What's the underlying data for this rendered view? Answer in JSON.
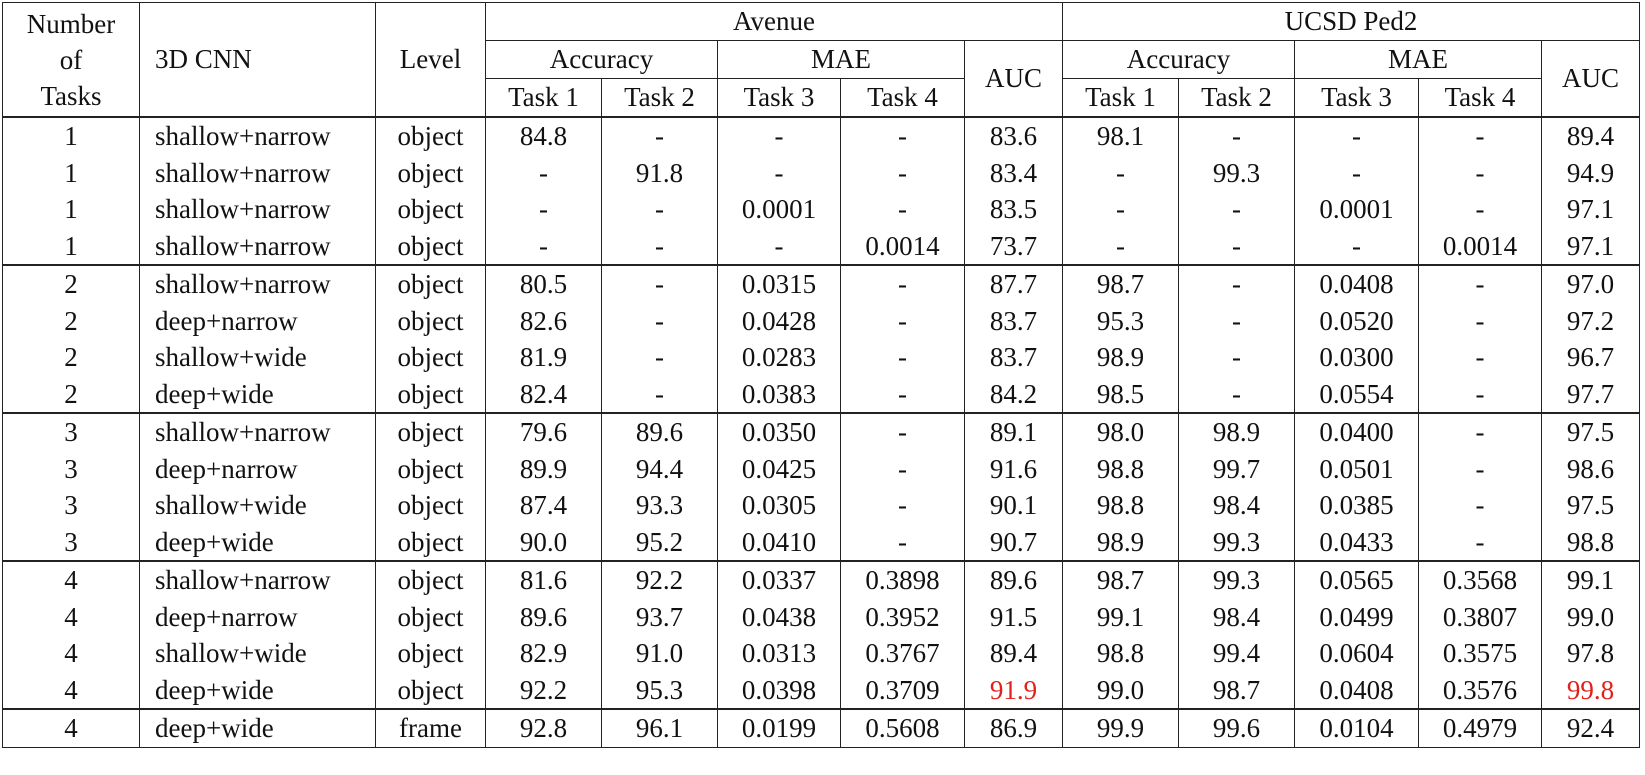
{
  "table": {
    "header": {
      "tasks": [
        "Number",
        "of",
        "Tasks"
      ],
      "cnn": "3D CNN",
      "level": "Level",
      "datasets": [
        {
          "name": "Avenue",
          "accuracy": "Accuracy",
          "mae": "MAE",
          "auc": "AUC",
          "tasks": [
            "Task 1",
            "Task 2",
            "Task 3",
            "Task 4"
          ]
        },
        {
          "name": "UCSD Ped2",
          "accuracy": "Accuracy",
          "mae": "MAE",
          "auc": "AUC",
          "tasks": [
            "Task 1",
            "Task 2",
            "Task 3",
            "Task 4"
          ]
        }
      ]
    },
    "row_groups": [
      [
        [
          "1",
          "shallow+narrow",
          "object",
          "84.8",
          "-",
          "-",
          "-",
          "83.6",
          "98.1",
          "-",
          "-",
          "-",
          "89.4"
        ],
        [
          "1",
          "shallow+narrow",
          "object",
          "-",
          "91.8",
          "-",
          "-",
          "83.4",
          "-",
          "99.3",
          "-",
          "-",
          "94.9"
        ],
        [
          "1",
          "shallow+narrow",
          "object",
          "-",
          "-",
          "0.0001",
          "-",
          "83.5",
          "-",
          "-",
          "0.0001",
          "-",
          "97.1"
        ],
        [
          "1",
          "shallow+narrow",
          "object",
          "-",
          "-",
          "-",
          "0.0014",
          "73.7",
          "-",
          "-",
          "-",
          "0.0014",
          "97.1"
        ]
      ],
      [
        [
          "2",
          "shallow+narrow",
          "object",
          "80.5",
          "-",
          "0.0315",
          "-",
          "87.7",
          "98.7",
          "-",
          "0.0408",
          "-",
          "97.0"
        ],
        [
          "2",
          "deep+narrow",
          "object",
          "82.6",
          "-",
          "0.0428",
          "-",
          "83.7",
          "95.3",
          "-",
          "0.0520",
          "-",
          "97.2"
        ],
        [
          "2",
          "shallow+wide",
          "object",
          "81.9",
          "-",
          "0.0283",
          "-",
          "83.7",
          "98.9",
          "-",
          "0.0300",
          "-",
          "96.7"
        ],
        [
          "2",
          "deep+wide",
          "object",
          "82.4",
          "-",
          "0.0383",
          "-",
          "84.2",
          "98.5",
          "-",
          "0.0554",
          "-",
          "97.7"
        ]
      ],
      [
        [
          "3",
          "shallow+narrow",
          "object",
          "79.6",
          "89.6",
          "0.0350",
          "-",
          "89.1",
          "98.0",
          "98.9",
          "0.0400",
          "-",
          "97.5"
        ],
        [
          "3",
          "deep+narrow",
          "object",
          "89.9",
          "94.4",
          "0.0425",
          "-",
          "91.6",
          "98.8",
          "99.7",
          "0.0501",
          "-",
          "98.6"
        ],
        [
          "3",
          "shallow+wide",
          "object",
          "87.4",
          "93.3",
          "0.0305",
          "-",
          "90.1",
          "98.8",
          "98.4",
          "0.0385",
          "-",
          "97.5"
        ],
        [
          "3",
          "deep+wide",
          "object",
          "90.0",
          "95.2",
          "0.0410",
          "-",
          "90.7",
          "98.9",
          "99.3",
          "0.0433",
          "-",
          "98.8"
        ]
      ],
      [
        [
          "4",
          "shallow+narrow",
          "object",
          "81.6",
          "92.2",
          "0.0337",
          "0.3898",
          "89.6",
          "98.7",
          "99.3",
          "0.0565",
          "0.3568",
          "99.1"
        ],
        [
          "4",
          "deep+narrow",
          "object",
          "89.6",
          "93.7",
          "0.0438",
          "0.3952",
          "91.5",
          "99.1",
          "98.4",
          "0.0499",
          "0.3807",
          "99.0"
        ],
        [
          "4",
          "shallow+wide",
          "object",
          "82.9",
          "91.0",
          "0.0313",
          "0.3767",
          "89.4",
          "98.8",
          "99.4",
          "0.0604",
          "0.3575",
          "97.8"
        ],
        [
          "4",
          "deep+wide",
          "object",
          "92.2",
          "95.3",
          "0.0398",
          "0.3709",
          {
            "text": "91.9",
            "color": "#e3201b"
          },
          "99.0",
          "98.7",
          "0.0408",
          "0.3576",
          {
            "text": "99.8",
            "color": "#e3201b"
          }
        ]
      ],
      [
        [
          "4",
          "deep+wide",
          "frame",
          "92.8",
          "96.1",
          "0.0199",
          "0.5608",
          "86.9",
          "99.9",
          "99.6",
          "0.0104",
          "0.4979",
          "92.4"
        ]
      ]
    ]
  }
}
